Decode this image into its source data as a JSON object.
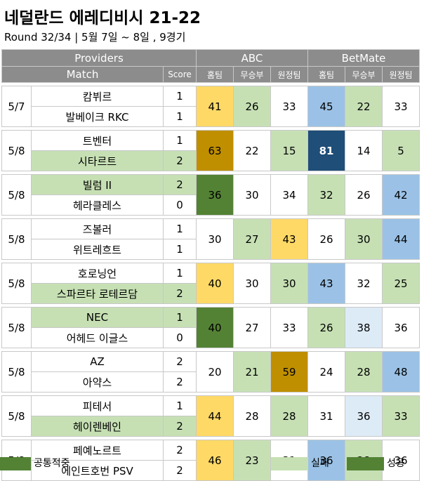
{
  "title": "네덜란드 에레디비시 21-22",
  "subtitle": "Round 32/34 | 5월 7일 ~ 8일 , 9경기",
  "header": {
    "providers": "Providers",
    "match": "Match",
    "score": "Score",
    "abc": "ABC",
    "betmate": "BetMate",
    "home": "홈팀",
    "draw": "무승부",
    "away": "원정팀"
  },
  "colors": {
    "white": "#ffffff",
    "green": "#c6e0b4",
    "yellow": "#ffd966",
    "gold": "#bf8f00",
    "dkgreen": "#548235",
    "lblue": "#9bc2e6",
    "llblue": "#ddebf7",
    "navy": "#1f4e78",
    "header_gray": "#8c8c8c"
  },
  "matches": [
    {
      "date": "5/7",
      "home": "캄뷔르",
      "away": "발베이크 RKC",
      "home_score": "1",
      "away_score": "1",
      "winner": "none",
      "abc": [
        {
          "v": "41",
          "c": "yellow"
        },
        {
          "v": "26",
          "c": "green"
        },
        {
          "v": "33",
          "c": "white"
        }
      ],
      "bm": [
        {
          "v": "45",
          "c": "lblue"
        },
        {
          "v": "22",
          "c": "green"
        },
        {
          "v": "33",
          "c": "white"
        }
      ]
    },
    {
      "date": "5/8",
      "home": "트벤터",
      "away": "시타르트",
      "home_score": "1",
      "away_score": "2",
      "winner": "away",
      "abc": [
        {
          "v": "63",
          "c": "gold"
        },
        {
          "v": "22",
          "c": "white"
        },
        {
          "v": "15",
          "c": "green"
        }
      ],
      "bm": [
        {
          "v": "81",
          "c": "navy"
        },
        {
          "v": "14",
          "c": "white"
        },
        {
          "v": "5",
          "c": "green"
        }
      ]
    },
    {
      "date": "5/8",
      "home": "빌럼 II",
      "away": "헤라클레스",
      "home_score": "2",
      "away_score": "0",
      "winner": "home",
      "abc": [
        {
          "v": "36",
          "c": "dkgreen"
        },
        {
          "v": "30",
          "c": "white"
        },
        {
          "v": "34",
          "c": "white"
        }
      ],
      "bm": [
        {
          "v": "32",
          "c": "green"
        },
        {
          "v": "26",
          "c": "white"
        },
        {
          "v": "42",
          "c": "lblue"
        }
      ]
    },
    {
      "date": "5/8",
      "home": "즈볼러",
      "away": "위트레흐트",
      "home_score": "1",
      "away_score": "1",
      "winner": "none",
      "abc": [
        {
          "v": "30",
          "c": "white"
        },
        {
          "v": "27",
          "c": "green"
        },
        {
          "v": "43",
          "c": "yellow"
        }
      ],
      "bm": [
        {
          "v": "26",
          "c": "white"
        },
        {
          "v": "30",
          "c": "green"
        },
        {
          "v": "44",
          "c": "lblue"
        }
      ]
    },
    {
      "date": "5/8",
      "home": "호로닝언",
      "away": "스파르타 로테르담",
      "home_score": "1",
      "away_score": "2",
      "winner": "away",
      "abc": [
        {
          "v": "40",
          "c": "yellow"
        },
        {
          "v": "30",
          "c": "white"
        },
        {
          "v": "30",
          "c": "green"
        }
      ],
      "bm": [
        {
          "v": "43",
          "c": "lblue"
        },
        {
          "v": "32",
          "c": "white"
        },
        {
          "v": "25",
          "c": "green"
        }
      ]
    },
    {
      "date": "5/8",
      "home": "NEC",
      "away": "어헤드 이글스",
      "home_score": "1",
      "away_score": "0",
      "winner": "home",
      "abc": [
        {
          "v": "40",
          "c": "dkgreen"
        },
        {
          "v": "27",
          "c": "white"
        },
        {
          "v": "33",
          "c": "white"
        }
      ],
      "bm": [
        {
          "v": "26",
          "c": "green"
        },
        {
          "v": "38",
          "c": "llblue"
        },
        {
          "v": "36",
          "c": "white"
        }
      ]
    },
    {
      "date": "5/8",
      "home": "AZ",
      "away": "아약스",
      "home_score": "2",
      "away_score": "2",
      "winner": "none",
      "abc": [
        {
          "v": "20",
          "c": "white"
        },
        {
          "v": "21",
          "c": "green"
        },
        {
          "v": "59",
          "c": "gold"
        }
      ],
      "bm": [
        {
          "v": "24",
          "c": "white"
        },
        {
          "v": "28",
          "c": "green"
        },
        {
          "v": "48",
          "c": "lblue"
        }
      ]
    },
    {
      "date": "5/8",
      "home": "피테서",
      "away": "헤이렌베인",
      "home_score": "1",
      "away_score": "2",
      "winner": "away",
      "abc": [
        {
          "v": "44",
          "c": "yellow"
        },
        {
          "v": "28",
          "c": "white"
        },
        {
          "v": "28",
          "c": "green"
        }
      ],
      "bm": [
        {
          "v": "31",
          "c": "white"
        },
        {
          "v": "36",
          "c": "llblue"
        },
        {
          "v": "33",
          "c": "green"
        }
      ]
    },
    {
      "date": "5/8",
      "home": "페예노르트",
      "away": "에인트호번 PSV",
      "home_score": "2",
      "away_score": "2",
      "winner": "none",
      "abc": [
        {
          "v": "46",
          "c": "yellow"
        },
        {
          "v": "23",
          "c": "green"
        },
        {
          "v": "31",
          "c": "white"
        }
      ],
      "bm": [
        {
          "v": "36",
          "c": "lblue"
        },
        {
          "v": "28",
          "c": "green"
        },
        {
          "v": "36",
          "c": "white"
        }
      ]
    }
  ],
  "legend": {
    "common": "공통적중",
    "fail": "실패",
    "success": "성공"
  }
}
